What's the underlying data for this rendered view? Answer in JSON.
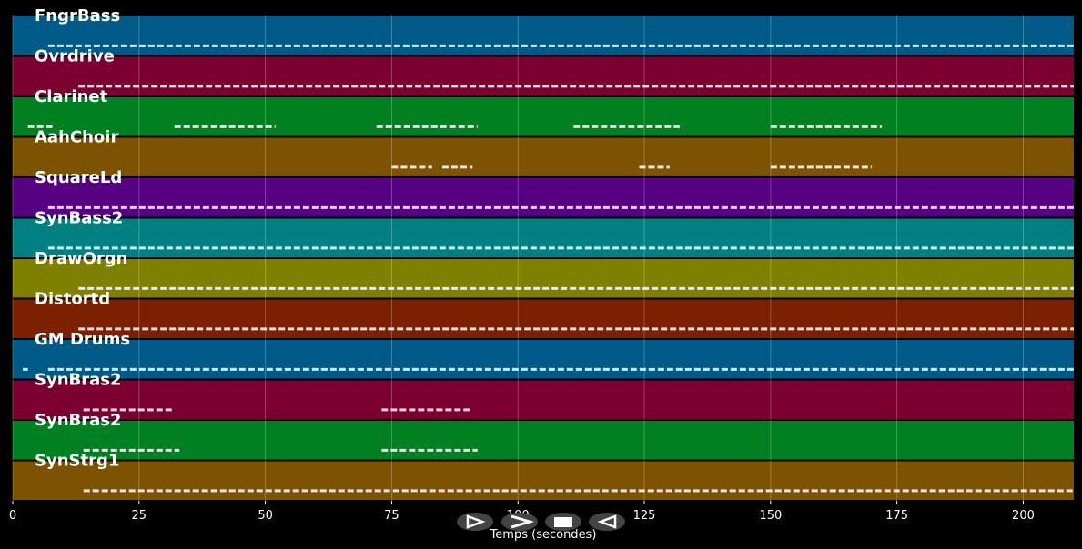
{
  "chart_data": {
    "type": "pianoroll",
    "x_label": "Temps (secondes)",
    "xlim": [
      0,
      210
    ],
    "xticks": [
      0,
      25,
      50,
      75,
      100,
      125,
      150,
      175,
      200
    ],
    "grid": true,
    "series": [
      {
        "name": "FngrBass",
        "color": "#005a87",
        "spans": [
          [
            7,
            210
          ]
        ]
      },
      {
        "name": "Ovrdrive",
        "color": "#7b0030",
        "spans": [
          [
            13,
            210
          ]
        ]
      },
      {
        "name": "Clarinet",
        "color": "#008020",
        "spans": [
          [
            3,
            8
          ],
          [
            32,
            52
          ],
          [
            72,
            92
          ],
          [
            111,
            132
          ],
          [
            150,
            172
          ]
        ]
      },
      {
        "name": "AahChoir",
        "color": "#7d5200",
        "spans": [
          [
            75,
            83
          ],
          [
            85,
            91
          ],
          [
            124,
            130
          ],
          [
            150,
            170
          ]
        ]
      },
      {
        "name": "SquareLd",
        "color": "#560082",
        "spans": [
          [
            7,
            210
          ]
        ]
      },
      {
        "name": "SynBass2",
        "color": "#008080",
        "spans": [
          [
            7,
            210
          ]
        ]
      },
      {
        "name": "DrawOrgn",
        "color": "#808000",
        "spans": [
          [
            13,
            210
          ]
        ]
      },
      {
        "name": "Distortd",
        "color": "#7b2000",
        "spans": [
          [
            13,
            210
          ]
        ]
      },
      {
        "name": "GM Drums",
        "color": "#005a87",
        "spans": [
          [
            2,
            3
          ],
          [
            7,
            210
          ]
        ]
      },
      {
        "name": "SynBras2",
        "color": "#7b0030",
        "spans": [
          [
            14,
            32
          ],
          [
            73,
            91
          ]
        ]
      },
      {
        "name": "SynBras2",
        "color": "#008020",
        "spans": [
          [
            14,
            33
          ],
          [
            73,
            92
          ]
        ]
      },
      {
        "name": "SynStrg1",
        "color": "#7d5200",
        "spans": [
          [
            14,
            210
          ]
        ]
      }
    ]
  }
}
